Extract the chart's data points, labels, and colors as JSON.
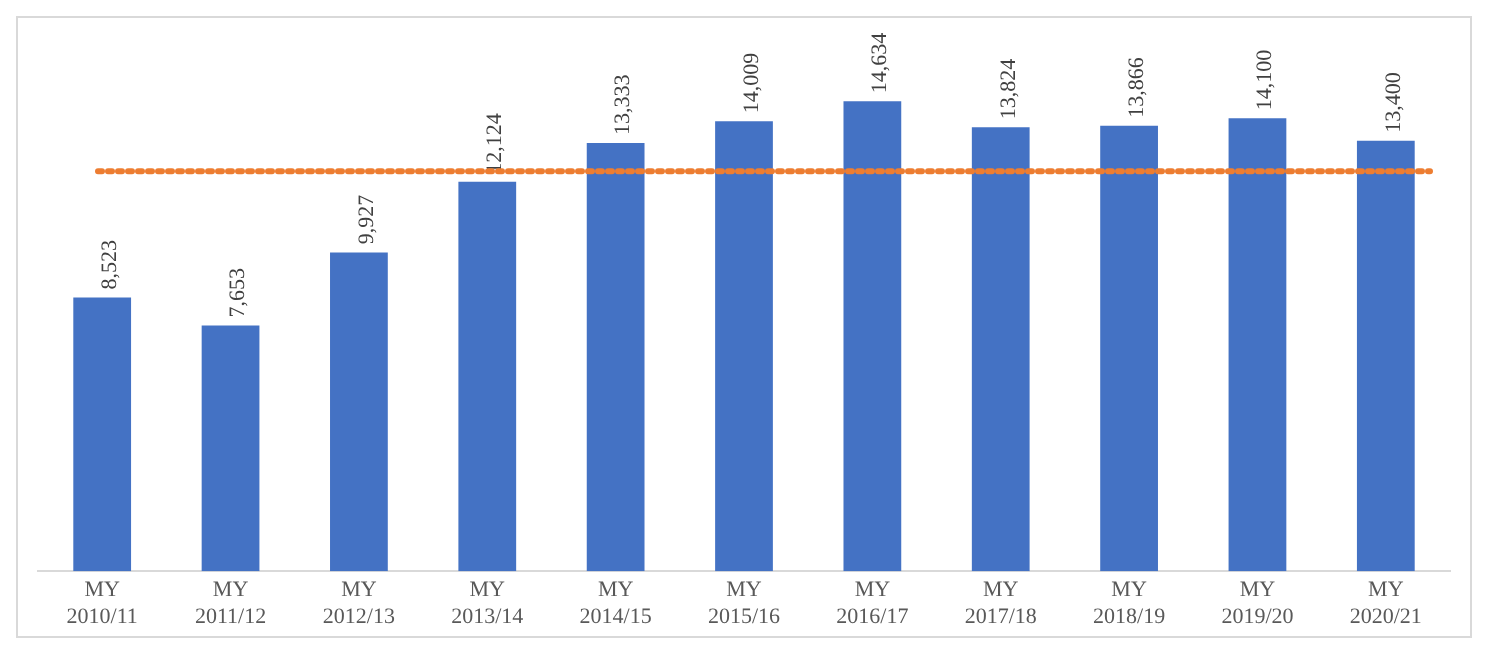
{
  "chart_data": {
    "type": "bar",
    "categories": [
      "MY 2010/11",
      "MY 2011/12",
      "MY 2012/13",
      "MY 2013/14",
      "MY 2014/15",
      "MY 2015/16",
      "MY 2016/17",
      "MY 2017/18",
      "MY 2018/19",
      "MY 2019/20",
      "MY 2020/21"
    ],
    "values": [
      8523,
      7653,
      9927,
      12124,
      13333,
      14009,
      14634,
      13824,
      13866,
      14100,
      13400
    ],
    "value_labels": [
      "8,523",
      "7,653",
      "9,927",
      "12,124",
      "13,333",
      "14,009",
      "14,634",
      "13,824",
      "13,866",
      "14,100",
      "13,400"
    ],
    "color": "#4472c4",
    "ref_lines": [
      {
        "axis": "y",
        "value": 12450,
        "color": "#ed7d31",
        "line_style": "dotted"
      }
    ],
    "grid": false,
    "legend": false
  }
}
